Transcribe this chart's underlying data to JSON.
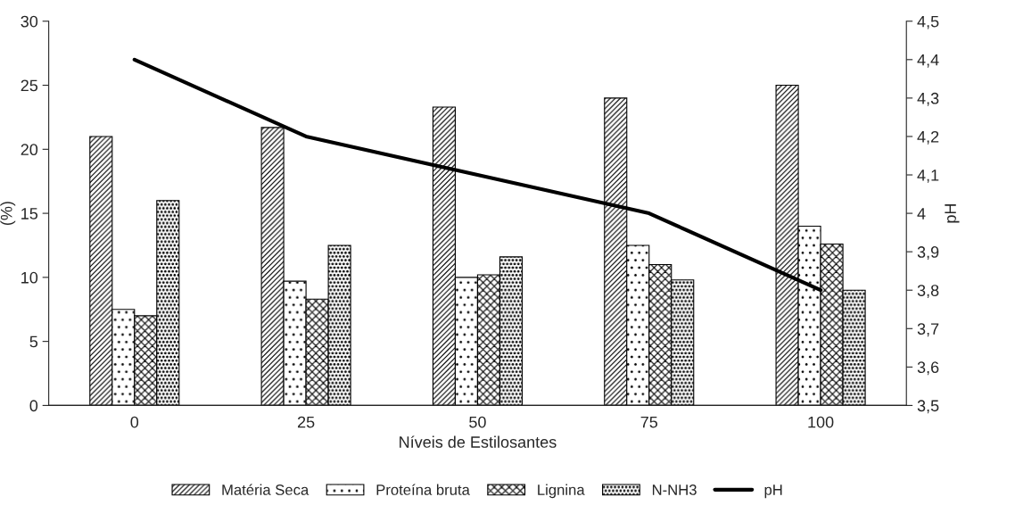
{
  "chart_data": {
    "type": "bar",
    "xlabel": "Níveis de Estilosantes",
    "ylabel": "(%)",
    "y2label": "pH",
    "categories": [
      "0",
      "25",
      "50",
      "75",
      "100"
    ],
    "series": [
      {
        "name": "Matéria Seca",
        "color": "#000000",
        "values": [
          21,
          21.7,
          23.3,
          24,
          25
        ]
      },
      {
        "name": "Proteína bruta",
        "color": "#000000",
        "values": [
          7.5,
          9.7,
          10,
          12.5,
          14
        ]
      },
      {
        "name": "Lignina",
        "color": "#000000",
        "values": [
          7,
          8.3,
          10.2,
          11,
          12.6
        ]
      },
      {
        "name": "N-NH3",
        "color": "#000000",
        "values": [
          16,
          12.5,
          11.6,
          9.8,
          9
        ]
      },
      {
        "name": "pH",
        "type": "line",
        "axis": "y2",
        "color": "#000000",
        "values": [
          4.4,
          4.2,
          4.1,
          4.0,
          3.8
        ]
      }
    ],
    "ylim": [
      0,
      30
    ],
    "yticks": [
      0,
      5,
      10,
      15,
      20,
      25,
      30
    ],
    "y2lim": [
      3.5,
      4.5
    ],
    "y2ticks": [
      {
        "value": 3.5,
        "label": "3,5"
      },
      {
        "value": 3.6,
        "label": "3,6"
      },
      {
        "value": 3.7,
        "label": "3,7"
      },
      {
        "value": 3.8,
        "label": "3,8"
      },
      {
        "value": 3.9,
        "label": "3,9"
      },
      {
        "value": 4,
        "label": "4"
      },
      {
        "value": 4.1,
        "label": "4,1"
      },
      {
        "value": 4.2,
        "label": "4,2"
      },
      {
        "value": 4.3,
        "label": "4,3"
      },
      {
        "value": 4.4,
        "label": "4,4"
      },
      {
        "value": 4.5,
        "label": "4,5"
      }
    ],
    "grid": false,
    "legend": "bottom",
    "marker": "none",
    "line_style": "solid"
  }
}
